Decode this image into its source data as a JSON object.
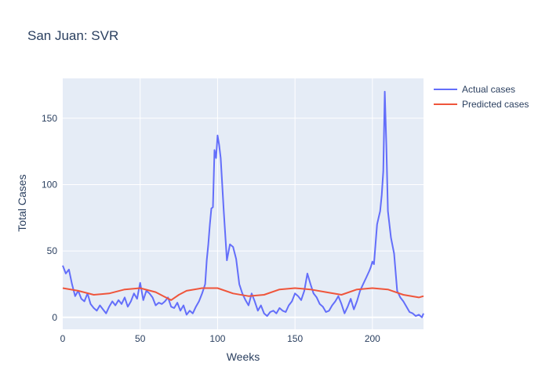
{
  "chart_data": {
    "type": "line",
    "title": "San Juan: SVR",
    "xlabel": "Weeks",
    "ylabel": "Total Cases",
    "xlim": [
      0,
      233
    ],
    "ylim": [
      -9,
      180
    ],
    "x_ticks": [
      0,
      50,
      100,
      150,
      200
    ],
    "y_ticks": [
      0,
      50,
      100,
      150
    ],
    "grid": true,
    "legend_position": "top-right",
    "series": [
      {
        "name": "Actual cases",
        "color": "#636efa",
        "x": [
          0,
          2,
          4,
          6,
          8,
          10,
          12,
          14,
          16,
          18,
          20,
          22,
          24,
          26,
          28,
          30,
          32,
          34,
          36,
          38,
          40,
          42,
          44,
          46,
          48,
          50,
          52,
          54,
          56,
          58,
          60,
          62,
          64,
          66,
          68,
          70,
          72,
          74,
          76,
          78,
          80,
          82,
          84,
          86,
          88,
          90,
          92,
          93,
          94,
          95,
          96,
          97,
          98,
          99,
          100,
          101,
          102,
          104,
          106,
          108,
          110,
          112,
          114,
          116,
          118,
          120,
          122,
          124,
          126,
          128,
          130,
          132,
          134,
          136,
          138,
          140,
          142,
          144,
          146,
          148,
          150,
          152,
          154,
          156,
          158,
          160,
          162,
          164,
          166,
          168,
          170,
          172,
          174,
          176,
          178,
          180,
          182,
          184,
          186,
          188,
          190,
          192,
          194,
          196,
          198,
          199,
          200,
          201,
          202,
          203,
          204,
          205,
          206,
          207,
          208,
          209,
          210,
          212,
          214,
          216,
          218,
          220,
          222,
          224,
          226,
          228,
          230,
          232,
          233
        ],
        "values": [
          39,
          33,
          36,
          25,
          16,
          20,
          14,
          12,
          18,
          10,
          7,
          5,
          9,
          6,
          3,
          8,
          12,
          9,
          13,
          10,
          15,
          8,
          12,
          18,
          14,
          26,
          13,
          20,
          18,
          15,
          9,
          11,
          10,
          12,
          15,
          8,
          7,
          11,
          5,
          9,
          2,
          5,
          3,
          8,
          12,
          18,
          25,
          43,
          55,
          70,
          82,
          83,
          126,
          120,
          137,
          130,
          120,
          80,
          43,
          55,
          53,
          44,
          25,
          18,
          13,
          9,
          18,
          12,
          5,
          9,
          3,
          1,
          4,
          5,
          3,
          7,
          5,
          4,
          9,
          12,
          18,
          16,
          13,
          20,
          33,
          25,
          18,
          15,
          10,
          8,
          4,
          5,
          9,
          12,
          16,
          10,
          3,
          8,
          14,
          6,
          12,
          20,
          25,
          30,
          35,
          38,
          42,
          40,
          55,
          70,
          75,
          80,
          92,
          110,
          170,
          130,
          80,
          60,
          48,
          20,
          15,
          12,
          8,
          4,
          3,
          1,
          2,
          0,
          3
        ]
      },
      {
        "name": "Predicted cases",
        "color": "#ef553b",
        "x": [
          0,
          10,
          20,
          30,
          40,
          50,
          60,
          65,
          70,
          75,
          80,
          90,
          100,
          110,
          120,
          130,
          140,
          150,
          160,
          170,
          180,
          190,
          200,
          210,
          220,
          230,
          233
        ],
        "values": [
          22,
          20,
          17,
          18,
          21,
          22,
          19,
          16,
          13,
          17,
          20,
          22,
          22,
          18,
          16,
          17,
          21,
          22,
          21,
          19,
          17,
          21,
          22,
          21,
          17,
          15,
          16
        ]
      }
    ]
  }
}
